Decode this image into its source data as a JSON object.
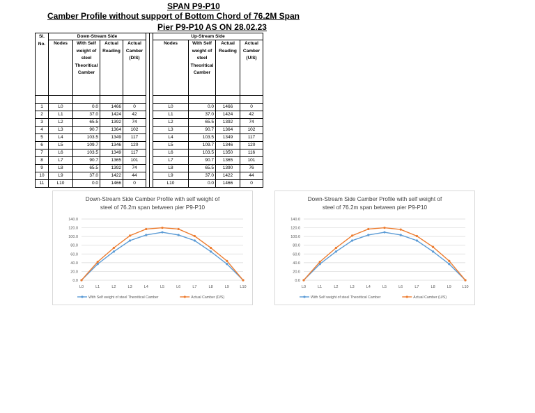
{
  "titles": {
    "line1": "SPAN P9-P10",
    "line2": "Camber Profile without support of Bottom Chord of 76.2M Span",
    "line3": "Pier P9-P10 AS ON 28.02.23"
  },
  "table": {
    "sl_header": "Sl. No.",
    "ds_group": "Down-Stream Side",
    "us_group": "Up-Stream Side",
    "col_nodes": "Nodes",
    "col_theory": "With Self weight of steel Theoritical Camber",
    "col_reading": "Actual Reading",
    "col_ds_camber": "Actual Camber (D/S)",
    "col_us_camber": "Actual Camber (U/S)",
    "rows": [
      {
        "sl": "1",
        "node": "L0",
        "ds_theory": "0.0",
        "ds_reading": "1466",
        "ds_camber": "0",
        "us_node": "L0",
        "us_theory": "0.0",
        "us_reading": "1466",
        "us_camber": "0"
      },
      {
        "sl": "2",
        "node": "L1",
        "ds_theory": "37.0",
        "ds_reading": "1424",
        "ds_camber": "42",
        "us_node": "L1",
        "us_theory": "37.0",
        "us_reading": "1424",
        "us_camber": "42"
      },
      {
        "sl": "3",
        "node": "L2",
        "ds_theory": "65.5",
        "ds_reading": "1392",
        "ds_camber": "74",
        "us_node": "L2",
        "us_theory": "65.5",
        "us_reading": "1392",
        "us_camber": "74"
      },
      {
        "sl": "4",
        "node": "L3",
        "ds_theory": "90.7",
        "ds_reading": "1364",
        "ds_camber": "102",
        "us_node": "L3",
        "us_theory": "90.7",
        "us_reading": "1364",
        "us_camber": "102"
      },
      {
        "sl": "5",
        "node": "L4",
        "ds_theory": "103.5",
        "ds_reading": "1349",
        "ds_camber": "117",
        "us_node": "L4",
        "us_theory": "103.5",
        "us_reading": "1349",
        "us_camber": "117"
      },
      {
        "sl": "6",
        "node": "L5",
        "ds_theory": "109.7",
        "ds_reading": "1346",
        "ds_camber": "120",
        "us_node": "L5",
        "us_theory": "109.7",
        "us_reading": "1346",
        "us_camber": "120"
      },
      {
        "sl": "7",
        "node": "L6",
        "ds_theory": "103.5",
        "ds_reading": "1349",
        "ds_camber": "117",
        "us_node": "L6",
        "us_theory": "103.5",
        "us_reading": "1350",
        "us_camber": "116"
      },
      {
        "sl": "8",
        "node": "L7",
        "ds_theory": "90.7",
        "ds_reading": "1365",
        "ds_camber": "101",
        "us_node": "L7",
        "us_theory": "90.7",
        "us_reading": "1365",
        "us_camber": "101"
      },
      {
        "sl": "9",
        "node": "L8",
        "ds_theory": "65.5",
        "ds_reading": "1392",
        "ds_camber": "74",
        "us_node": "L8",
        "us_theory": "65.5",
        "us_reading": "1390",
        "us_camber": "76"
      },
      {
        "sl": "10",
        "node": "L9",
        "ds_theory": "37.0",
        "ds_reading": "1422",
        "ds_camber": "44",
        "us_node": "L9",
        "us_theory": "37.0",
        "us_reading": "1422",
        "us_camber": "44"
      },
      {
        "sl": "11",
        "node": "L10",
        "ds_theory": "0.0",
        "ds_reading": "1466",
        "ds_camber": "0",
        "us_node": "L10",
        "us_theory": "0.0",
        "us_reading": "1466",
        "us_camber": "0"
      }
    ]
  },
  "chart_data": [
    {
      "type": "line",
      "title": "Down-Stream Side Camber Profile with self weight of steel of 76.2m span between pier P9-P10",
      "title_lines": [
        "Down-Stream Side Camber Profile with self weight of",
        "steel of 76.2m span between pier P9-P10"
      ],
      "x": [
        "L0",
        "L1",
        "L2",
        "L3",
        "L4",
        "L5",
        "L6",
        "L7",
        "L8",
        "L9",
        "L10"
      ],
      "y_ticks": [
        "0.0",
        "20.0",
        "40.0",
        "60.0",
        "80.0",
        "100.0",
        "120.0",
        "140.0"
      ],
      "ylim": [
        0,
        140
      ],
      "grid": true,
      "legend_position": "bottom",
      "series": [
        {
          "name": "With Self weight of steel  Theoritical Camber",
          "color": "#5b9bd5",
          "values": [
            0.0,
            37.0,
            65.5,
            90.7,
            103.5,
            109.7,
            103.5,
            90.7,
            65.5,
            37.0,
            0.0
          ]
        },
        {
          "name": "Actual Camber (D/S)",
          "color": "#ed7d31",
          "values": [
            0,
            42,
            74,
            102,
            117,
            120,
            117,
            101,
            74,
            44,
            0
          ]
        }
      ]
    },
    {
      "type": "line",
      "title": "Down-Stream Side Camber Profile with self weight of steel of 76.2m span between pier P9-P10",
      "title_lines": [
        "Down-Stream Side Camber Profile with self weight of",
        "steel of 76.2m span between pier P9-P10"
      ],
      "x": [
        "L0",
        "L1",
        "L2",
        "L3",
        "L4",
        "L5",
        "L6",
        "L7",
        "L8",
        "L9",
        "L10"
      ],
      "y_ticks": [
        "0.0",
        "20.0",
        "40.0",
        "60.0",
        "80.0",
        "100.0",
        "120.0",
        "140.0"
      ],
      "ylim": [
        0,
        140
      ],
      "grid": true,
      "legend_position": "bottom",
      "series": [
        {
          "name": "With Self weight of steel  Theoritical Camber",
          "color": "#5b9bd5",
          "values": [
            0.0,
            37.0,
            65.5,
            90.7,
            103.5,
            109.7,
            103.5,
            90.7,
            65.5,
            37.0,
            0.0
          ]
        },
        {
          "name": "Actual Camber (U/S)",
          "color": "#ed7d31",
          "values": [
            0,
            42,
            74,
            102,
            117,
            120,
            116,
            101,
            76,
            44,
            0
          ]
        }
      ]
    }
  ]
}
